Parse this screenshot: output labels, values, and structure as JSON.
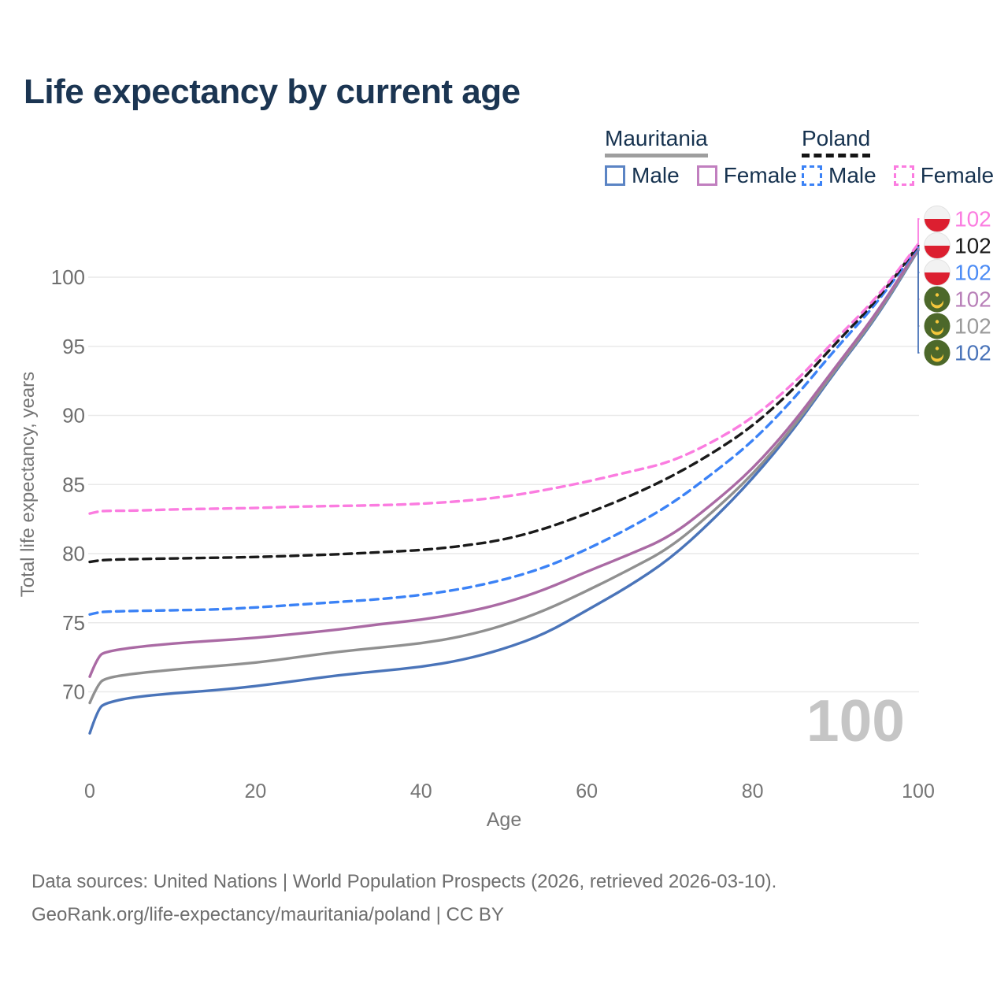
{
  "title": "Life expectancy by current age",
  "watermark_age": "100",
  "footer": {
    "line1": "Data sources: United Nations | World Population Prospects (2026, retrieved 2026-03-10).",
    "line2": "GeoRank.org/life-expectancy/mauritania/poland | CC BY"
  },
  "legend": {
    "groups": [
      {
        "id": "mauritania",
        "name": "Mauritania",
        "line_style": "solid",
        "underline_color": "#9e9e9e",
        "items": [
          {
            "id": "mauritania-male",
            "label": "Male",
            "color": "#5b84c4",
            "dashed": false
          },
          {
            "id": "mauritania-female",
            "label": "Female",
            "color": "#c17fbf",
            "dashed": false
          }
        ]
      },
      {
        "id": "poland",
        "name": "Poland",
        "line_style": "dashed",
        "underline_color": "#141414",
        "items": [
          {
            "id": "poland-male",
            "label": "Male",
            "color": "#3b82f6",
            "dashed": true
          },
          {
            "id": "poland-female",
            "label": "Female",
            "color": "#fb7ce0",
            "dashed": true
          }
        ]
      }
    ]
  },
  "flags": {
    "poland": {
      "top": "#f2f2f2",
      "bottom": "#dc1f30",
      "border": "#e2e2e2"
    },
    "mauritania": {
      "field": "#4c682a",
      "emblem": "#f5c73c"
    }
  },
  "chart_data": {
    "type": "line",
    "title": "Life expectancy by current age",
    "xlabel": "Age",
    "ylabel": "Total life expectancy, years",
    "xlim": [
      0,
      100
    ],
    "ylim": [
      65.5,
      103.5
    ],
    "xticks": [
      0,
      20,
      40,
      60,
      80,
      100
    ],
    "yticks": [
      70,
      75,
      80,
      85,
      90,
      95,
      100
    ],
    "grid": true,
    "grid_color": "#e9e9e9",
    "series": [
      {
        "id": "mauritania-male",
        "name": "Mauritania Male",
        "color": "#4a74b9",
        "dashed": false,
        "points": [
          [
            0,
            67.0
          ],
          [
            1,
            68.8
          ],
          [
            2,
            69.2
          ],
          [
            5,
            69.6
          ],
          [
            10,
            69.9
          ],
          [
            15,
            70.1
          ],
          [
            20,
            70.4
          ],
          [
            25,
            70.8
          ],
          [
            30,
            71.2
          ],
          [
            35,
            71.5
          ],
          [
            40,
            71.8
          ],
          [
            45,
            72.3
          ],
          [
            50,
            73.1
          ],
          [
            55,
            74.2
          ],
          [
            60,
            75.9
          ],
          [
            65,
            77.6
          ],
          [
            70,
            79.6
          ],
          [
            75,
            82.3
          ],
          [
            80,
            85.4
          ],
          [
            85,
            89.0
          ],
          [
            90,
            93.2
          ],
          [
            95,
            97.1
          ],
          [
            100,
            101.95
          ]
        ]
      },
      {
        "id": "mauritania-combined",
        "name": "Mauritania",
        "color": "#909090",
        "dashed": false,
        "points": [
          [
            0,
            69.2
          ],
          [
            1,
            70.6
          ],
          [
            2,
            71.0
          ],
          [
            5,
            71.3
          ],
          [
            10,
            71.6
          ],
          [
            15,
            71.85
          ],
          [
            20,
            72.1
          ],
          [
            25,
            72.5
          ],
          [
            30,
            72.9
          ],
          [
            35,
            73.2
          ],
          [
            40,
            73.5
          ],
          [
            45,
            74.0
          ],
          [
            50,
            74.8
          ],
          [
            55,
            75.9
          ],
          [
            60,
            77.3
          ],
          [
            65,
            78.8
          ],
          [
            70,
            80.4
          ],
          [
            75,
            82.9
          ],
          [
            80,
            85.7
          ],
          [
            85,
            89.2
          ],
          [
            90,
            93.3
          ],
          [
            95,
            97.2
          ],
          [
            100,
            102.0
          ]
        ]
      },
      {
        "id": "mauritania-female",
        "name": "Mauritania Female",
        "color": "#aa6aa4",
        "dashed": false,
        "points": [
          [
            0,
            71.1
          ],
          [
            1,
            72.6
          ],
          [
            2,
            72.9
          ],
          [
            5,
            73.2
          ],
          [
            10,
            73.5
          ],
          [
            15,
            73.7
          ],
          [
            20,
            73.9
          ],
          [
            25,
            74.2
          ],
          [
            30,
            74.5
          ],
          [
            35,
            74.9
          ],
          [
            40,
            75.2
          ],
          [
            45,
            75.7
          ],
          [
            50,
            76.4
          ],
          [
            55,
            77.4
          ],
          [
            60,
            78.7
          ],
          [
            65,
            79.9
          ],
          [
            70,
            81.2
          ],
          [
            75,
            83.5
          ],
          [
            80,
            86.1
          ],
          [
            85,
            89.5
          ],
          [
            90,
            93.5
          ],
          [
            95,
            97.4
          ],
          [
            100,
            102.1
          ]
        ]
      },
      {
        "id": "poland-male",
        "name": "Poland Male",
        "color": "#3b82f6",
        "dashed": true,
        "points": [
          [
            0,
            75.6
          ],
          [
            1,
            75.75
          ],
          [
            2,
            75.8
          ],
          [
            5,
            75.85
          ],
          [
            10,
            75.9
          ],
          [
            15,
            75.95
          ],
          [
            20,
            76.1
          ],
          [
            25,
            76.3
          ],
          [
            30,
            76.5
          ],
          [
            35,
            76.7
          ],
          [
            40,
            77.0
          ],
          [
            45,
            77.45
          ],
          [
            50,
            78.1
          ],
          [
            55,
            79.0
          ],
          [
            60,
            80.3
          ],
          [
            65,
            81.8
          ],
          [
            70,
            83.5
          ],
          [
            75,
            85.7
          ],
          [
            80,
            88.1
          ],
          [
            85,
            91.2
          ],
          [
            90,
            94.8
          ],
          [
            95,
            98.1
          ],
          [
            100,
            102.2
          ]
        ]
      },
      {
        "id": "poland-combined",
        "name": "Poland",
        "color": "#1a1a1a",
        "dashed": true,
        "points": [
          [
            0,
            79.4
          ],
          [
            1,
            79.5
          ],
          [
            2,
            79.55
          ],
          [
            5,
            79.6
          ],
          [
            10,
            79.65
          ],
          [
            15,
            79.7
          ],
          [
            20,
            79.75
          ],
          [
            25,
            79.85
          ],
          [
            30,
            79.95
          ],
          [
            35,
            80.1
          ],
          [
            40,
            80.25
          ],
          [
            45,
            80.55
          ],
          [
            50,
            81.0
          ],
          [
            55,
            81.8
          ],
          [
            60,
            82.9
          ],
          [
            65,
            84.1
          ],
          [
            70,
            85.5
          ],
          [
            75,
            87.2
          ],
          [
            80,
            89.2
          ],
          [
            85,
            91.9
          ],
          [
            90,
            95.2
          ],
          [
            95,
            98.3
          ],
          [
            100,
            102.3
          ]
        ]
      },
      {
        "id": "poland-female",
        "name": "Poland Female",
        "color": "#fb7ce0",
        "dashed": true,
        "points": [
          [
            0,
            82.9
          ],
          [
            1,
            83.05
          ],
          [
            2,
            83.1
          ],
          [
            5,
            83.1
          ],
          [
            10,
            83.2
          ],
          [
            15,
            83.25
          ],
          [
            20,
            83.3
          ],
          [
            25,
            83.4
          ],
          [
            30,
            83.45
          ],
          [
            35,
            83.5
          ],
          [
            40,
            83.6
          ],
          [
            45,
            83.8
          ],
          [
            50,
            84.1
          ],
          [
            55,
            84.6
          ],
          [
            60,
            85.2
          ],
          [
            65,
            85.9
          ],
          [
            70,
            86.6
          ],
          [
            75,
            88.0
          ],
          [
            80,
            89.8
          ],
          [
            85,
            92.3
          ],
          [
            90,
            95.5
          ],
          [
            95,
            98.5
          ],
          [
            100,
            102.4
          ]
        ]
      }
    ],
    "end_labels": [
      {
        "series_id": "poland-female",
        "text": "102",
        "color": "#fb7ce0",
        "flag": "poland"
      },
      {
        "series_id": "poland-combined",
        "text": "102",
        "color": "#1a1a1a",
        "flag": "poland"
      },
      {
        "series_id": "poland-male",
        "text": "102",
        "color": "#4b8bf5",
        "flag": "poland"
      },
      {
        "series_id": "mauritania-female",
        "text": "102",
        "color": "#b87fb8",
        "flag": "mauritania"
      },
      {
        "series_id": "mauritania-combined",
        "text": "102",
        "color": "#9a9a9a",
        "flag": "mauritania"
      },
      {
        "series_id": "mauritania-male",
        "text": "102",
        "color": "#4a74b9",
        "flag": "mauritania"
      }
    ],
    "legend_position": "top-right",
    "current_age_counter": "100"
  }
}
